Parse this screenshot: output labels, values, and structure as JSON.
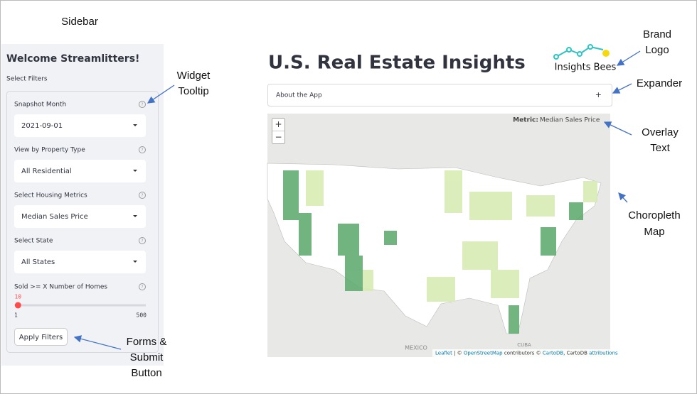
{
  "annotations": {
    "sidebar": "Sidebar",
    "widget_tooltip": [
      "Widget",
      "Tooltip"
    ],
    "forms": [
      "Forms &",
      "Submit",
      "Button"
    ],
    "brand_logo": [
      "Brand",
      "Logo"
    ],
    "expander": "Expander",
    "overlay_text": [
      "Overlay",
      "Text"
    ],
    "choropleth_map": [
      "Choropleth",
      "Map"
    ]
  },
  "sidebar": {
    "title": "Welcome Streamlitters!",
    "subtitle": "Select Filters",
    "widgets": [
      {
        "label": "Snapshot Month",
        "value": "2021-09-01"
      },
      {
        "label": "View by Property Type",
        "value": "All Residential"
      },
      {
        "label": "Select Housing Metrics",
        "value": "Median Sales Price"
      },
      {
        "label": "Select State",
        "value": "All States"
      }
    ],
    "slider": {
      "label": "Sold >= X Number of Homes",
      "value": 10,
      "min": 1,
      "max": 500
    },
    "button": "Apply Filters"
  },
  "main": {
    "title": "U.S. Real Estate Insights",
    "logo": "Insights Bees",
    "expander": {
      "label": "About the App",
      "icon": "+"
    },
    "map": {
      "zoom_in": "+",
      "zoom_out": "−",
      "overlay_key": "Metric:",
      "overlay_value": "Median Sales Price",
      "labels": [
        "MEXICO",
        "CUBA"
      ],
      "attribution": [
        "Leaflet",
        " | © ",
        "OpenStreetMap",
        " contributors © ",
        "CartoDB",
        ", CartoDB ",
        "attributions"
      ]
    }
  }
}
